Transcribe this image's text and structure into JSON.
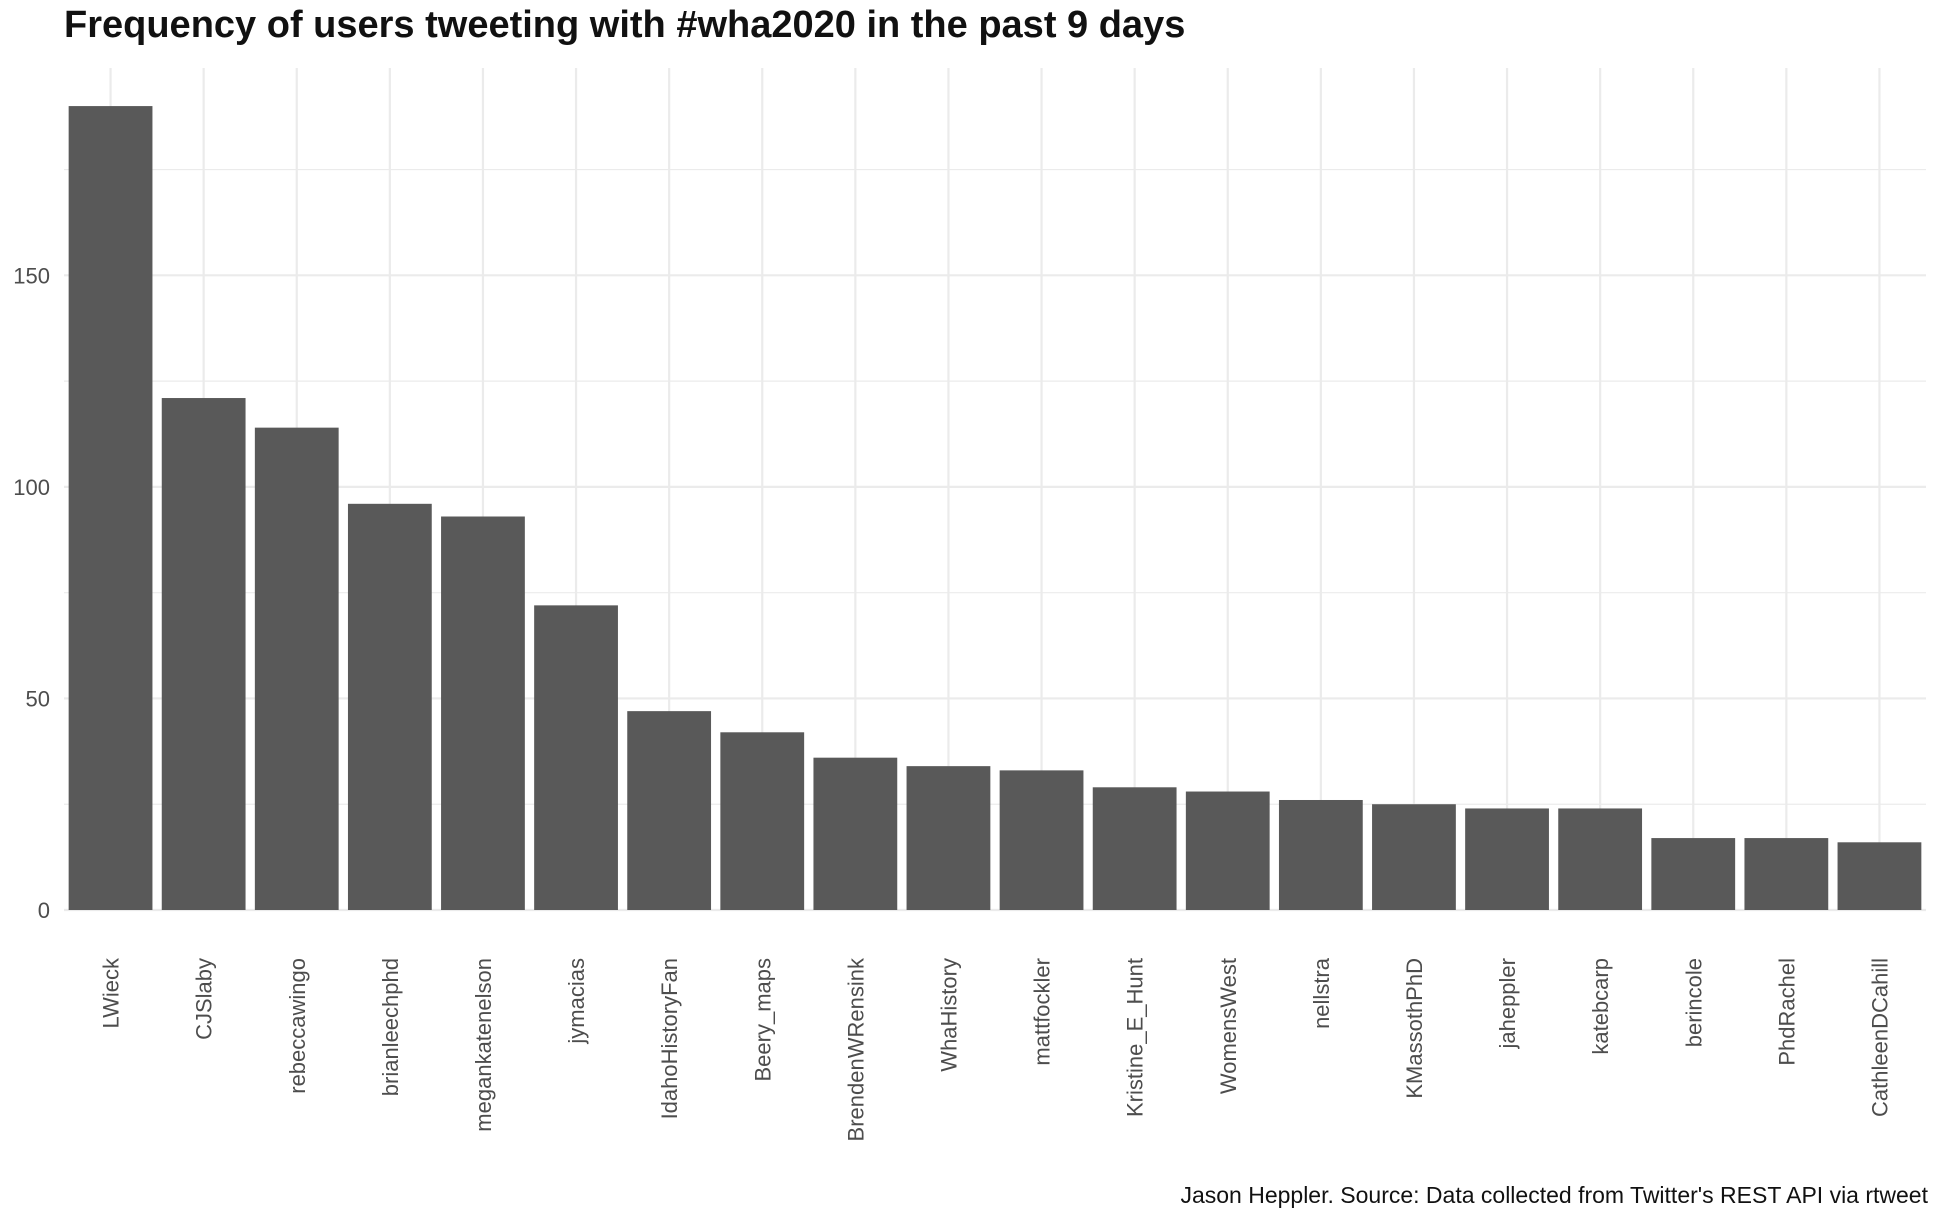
{
  "chart_data": {
    "type": "bar",
    "title": "Frequency of users tweeting with #wha2020 in the past 9 days",
    "caption": "Jason Heppler. Source: Data collected from Twitter's REST API via rtweet",
    "xlabel": "",
    "ylabel": "",
    "categories": [
      "LWieck",
      "CJSlaby",
      "rebeccawingo",
      "brianleechphd",
      "megankatenelson",
      "jymacias",
      "IdahoHistoryFan",
      "Beery_maps",
      "BrendenWRensink",
      "WhaHistory",
      "mattfockler",
      "Kristine_E_Hunt",
      "WomensWest",
      "nellstra",
      "KMassothPhD",
      "jaheppler",
      "katebcarp",
      "berincole",
      "PhdRachel",
      "CathleenDCahill"
    ],
    "values": [
      190,
      121,
      114,
      96,
      93,
      72,
      47,
      42,
      36,
      34,
      33,
      29,
      28,
      26,
      25,
      24,
      24,
      17,
      17,
      16
    ],
    "y_ticks": [
      0,
      50,
      100,
      150
    ],
    "ylim": [
      0,
      199
    ],
    "grid": true,
    "x_label_rotation": "vertical",
    "bar_color": "#595959",
    "grid_color": "#ebebeb",
    "background": "#ffffff"
  }
}
